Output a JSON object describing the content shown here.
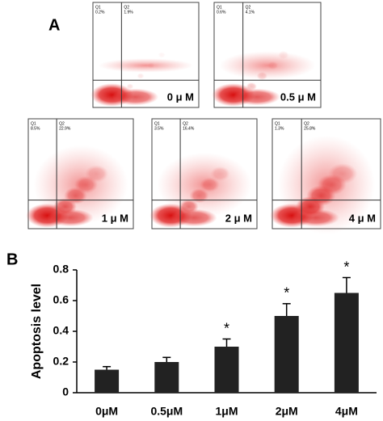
{
  "figure": {
    "panel_a_label": "A",
    "panel_b_label": "B",
    "plots": [
      {
        "condition": "0 μ M",
        "q1_name": "Q1",
        "q1": "0.2%",
        "q2_name": "Q2",
        "q2": "1.9%"
      },
      {
        "condition": "0.5 μ M",
        "q1_name": "Q1",
        "q1": "0.6%",
        "q2_name": "Q2",
        "q2": "4.1%"
      },
      {
        "condition": "1 μ M",
        "q1_name": "Q1",
        "q1": "8.5%",
        "q2_name": "Q2",
        "q2": "22.9%"
      },
      {
        "condition": "2 μ M",
        "q1_name": "Q1",
        "q1": "3.5%",
        "q2_name": "Q2",
        "q2": "16.4%"
      },
      {
        "condition": "4 μ M",
        "q1_name": "Q1",
        "q1": "1.3%",
        "q2_name": "Q2",
        "q2": "25.8%"
      }
    ]
  },
  "chart_data": {
    "type": "bar",
    "y_label": "Apoptosis level",
    "categories": [
      "0μM",
      "0.5μM",
      "1μM",
      "2μM",
      "4μM"
    ],
    "values": [
      0.15,
      0.2,
      0.3,
      0.5,
      0.65
    ],
    "errors": [
      0.02,
      0.03,
      0.05,
      0.08,
      0.1
    ],
    "annotations": [
      null,
      null,
      "*",
      "*",
      "*"
    ],
    "color": "#222222",
    "ylim": [
      0,
      0.8
    ],
    "yticks": [
      0,
      0.2,
      0.4,
      0.6,
      0.8
    ]
  }
}
